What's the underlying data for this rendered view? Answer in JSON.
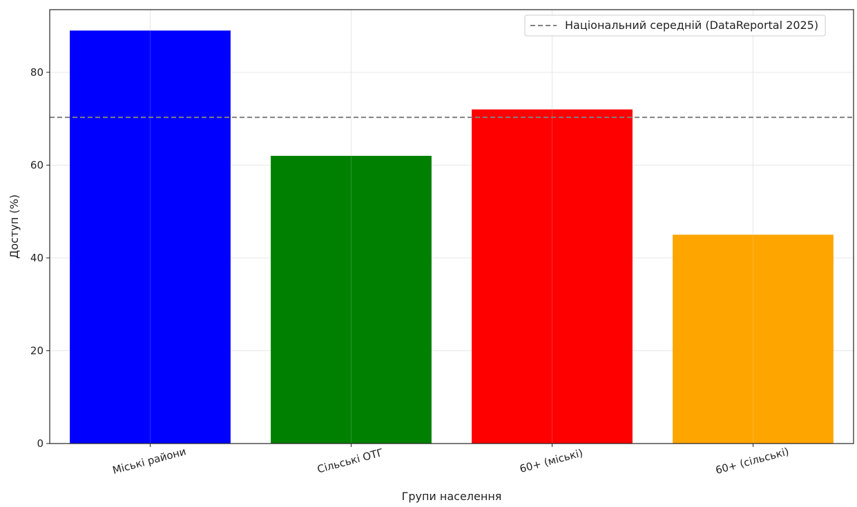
{
  "chart_data": {
    "type": "bar",
    "title": "",
    "xlabel": "Групи населення",
    "ylabel": "Доступ (%)",
    "categories": [
      "Міські райони",
      "Сільські ОТГ",
      "60+ (міські)",
      "60+ (сільські)"
    ],
    "values": [
      89,
      62,
      72,
      45
    ],
    "colors": [
      "#0000ff",
      "#008000",
      "#ff0000",
      "#ffa500"
    ],
    "ylim": [
      0,
      93.5
    ],
    "yticks": [
      0,
      20,
      40,
      60,
      80
    ],
    "ytick_labels": [
      "0",
      "20",
      "40",
      "60",
      "80"
    ],
    "grid": true,
    "reference_line": {
      "value": 70.3,
      "style": "dashed",
      "color": "#808080",
      "label": "Національний середній (DataReportal 2025)"
    },
    "legend_position": "top-right"
  }
}
